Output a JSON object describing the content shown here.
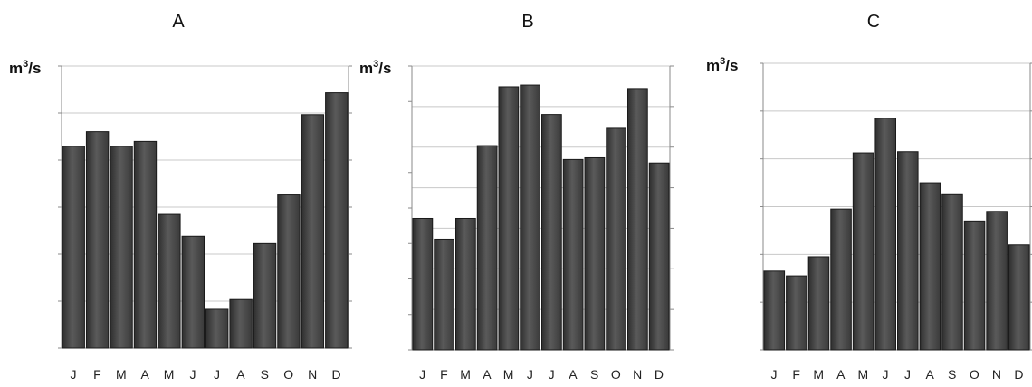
{
  "chart_data": [
    {
      "type": "bar",
      "title": "A",
      "ylabel": "m³/s",
      "categories": [
        "J",
        "F",
        "M",
        "A",
        "M",
        "J",
        "J",
        "A",
        "S",
        "O",
        "N",
        "D"
      ],
      "values": [
        8.3,
        8.9,
        8.3,
        8.5,
        5.5,
        4.6,
        1.6,
        2.0,
        4.3,
        6.3,
        9.6,
        10.5
      ],
      "ylim": [
        0,
        11.6
      ],
      "grid": true,
      "bar_color": "#4a4a4a"
    },
    {
      "type": "bar",
      "title": "B",
      "ylabel": "m³/s",
      "categories": [
        "J",
        "F",
        "M",
        "A",
        "M",
        "J",
        "J",
        "A",
        "S",
        "O",
        "N",
        "D"
      ],
      "values": [
        3.8,
        3.2,
        3.8,
        5.9,
        7.6,
        7.65,
        6.8,
        5.5,
        5.55,
        6.4,
        7.55,
        5.4
      ],
      "ylim": [
        0,
        8.2
      ],
      "grid": true,
      "bar_color": "#4a4a4a"
    },
    {
      "type": "bar",
      "title": "C",
      "ylabel": "m³/s",
      "categories": [
        "J",
        "F",
        "M",
        "A",
        "M",
        "J",
        "J",
        "A",
        "S",
        "O",
        "N",
        "D"
      ],
      "values": [
        3.3,
        3.1,
        3.9,
        5.9,
        8.25,
        9.7,
        8.3,
        7.0,
        6.5,
        5.4,
        5.8,
        4.4
      ],
      "ylim": [
        0,
        12
      ],
      "grid": true,
      "bar_color": "#4a4a4a"
    }
  ]
}
